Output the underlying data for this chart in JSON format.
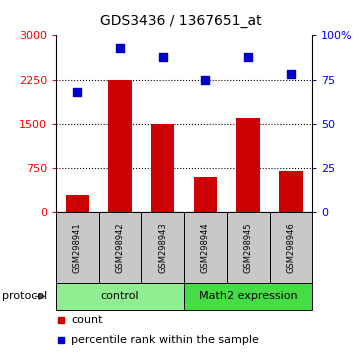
{
  "title": "GDS3436 / 1367651_at",
  "samples": [
    "GSM298941",
    "GSM298942",
    "GSM298943",
    "GSM298944",
    "GSM298945",
    "GSM298946"
  ],
  "counts": [
    300,
    2250,
    1500,
    600,
    1600,
    700
  ],
  "percentiles": [
    68,
    93,
    88,
    75,
    88,
    78
  ],
  "left_ylim": [
    0,
    3000
  ],
  "right_ylim": [
    0,
    100
  ],
  "left_yticks": [
    0,
    750,
    1500,
    2250,
    3000
  ],
  "right_yticks": [
    0,
    25,
    50,
    75,
    100
  ],
  "right_yticklabels": [
    "0",
    "25",
    "50",
    "75",
    "100%"
  ],
  "bar_color": "#cc0000",
  "scatter_color": "#0000cc",
  "groups": [
    {
      "label": "control",
      "samples": [
        0,
        1,
        2
      ],
      "color": "#90ee90"
    },
    {
      "label": "Math2 expression",
      "samples": [
        3,
        4,
        5
      ],
      "color": "#44dd44"
    }
  ],
  "sample_box_color": "#c8c8c8",
  "protocol_label": "protocol",
  "legend_items": [
    {
      "label": "count",
      "color": "#cc0000"
    },
    {
      "label": "percentile rank within the sample",
      "color": "#0000cc"
    }
  ],
  "title_fontsize": 10,
  "tick_fontsize": 8,
  "sample_fontsize": 6,
  "group_fontsize": 8,
  "legend_fontsize": 8
}
